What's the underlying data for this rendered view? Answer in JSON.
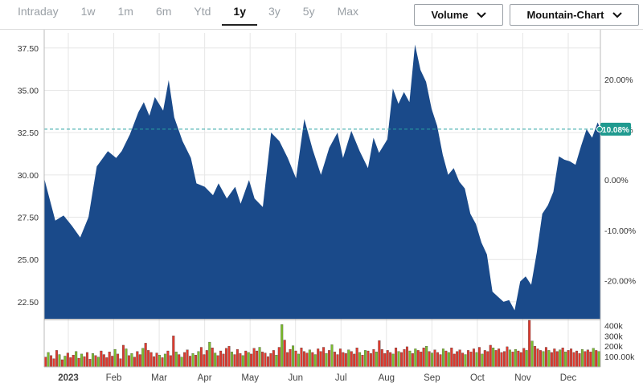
{
  "toolbar": {
    "tabs": [
      {
        "label": "Intraday",
        "active": false
      },
      {
        "label": "1w",
        "active": false
      },
      {
        "label": "1m",
        "active": false
      },
      {
        "label": "6m",
        "active": false
      },
      {
        "label": "Ytd",
        "active": false
      },
      {
        "label": "1y",
        "active": true
      },
      {
        "label": "3y",
        "active": false
      },
      {
        "label": "5y",
        "active": false
      },
      {
        "label": "Max",
        "active": false
      }
    ],
    "volume_dropdown": "Volume",
    "chart_type_dropdown": "Mountain-Chart"
  },
  "chart_data": {
    "type": "area",
    "price_axis": {
      "ticks": [
        "22.50",
        "25.00",
        "27.50",
        "30.00",
        "32.50",
        "35.00",
        "37.50"
      ],
      "ylim": [
        21.5,
        38.2
      ]
    },
    "percent_axis": {
      "ticks": [
        "-20.00%",
        "-10.00%",
        "0.00%",
        "10.00%",
        "20.00%"
      ],
      "base_price": 29.7
    },
    "current_change_label": "10.08%",
    "reference_price": 32.7,
    "x_labels": [
      "2023",
      "Feb",
      "Mar",
      "Apr",
      "May",
      "Jun",
      "Jul",
      "Aug",
      "Sep",
      "Oct",
      "Nov",
      "Dec"
    ],
    "series": [
      {
        "type": "area",
        "color": "#1a4a8a",
        "values": [
          [
            0,
            29.8
          ],
          [
            4,
            27.3
          ],
          [
            7,
            27.6
          ],
          [
            10,
            27.0
          ],
          [
            13,
            26.3
          ],
          [
            16,
            27.5
          ],
          [
            19,
            30.5
          ],
          [
            23,
            31.4
          ],
          [
            26,
            31.0
          ],
          [
            28,
            31.4
          ],
          [
            31,
            32.4
          ],
          [
            34,
            33.7
          ],
          [
            36,
            34.3
          ],
          [
            38,
            33.5
          ],
          [
            40,
            34.6
          ],
          [
            43,
            33.8
          ],
          [
            45,
            35.6
          ],
          [
            47,
            33.4
          ],
          [
            50,
            32.0
          ],
          [
            53,
            31.0
          ],
          [
            55,
            29.5
          ],
          [
            58,
            29.3
          ],
          [
            61,
            28.8
          ],
          [
            63,
            29.5
          ],
          [
            66,
            28.6
          ],
          [
            69,
            29.3
          ],
          [
            71,
            28.3
          ],
          [
            74,
            29.7
          ],
          [
            76,
            28.6
          ],
          [
            79,
            28.1
          ],
          [
            82,
            32.5
          ],
          [
            85,
            32.0
          ],
          [
            88,
            31.0
          ],
          [
            91,
            29.8
          ],
          [
            94,
            33.3
          ],
          [
            97,
            31.5
          ],
          [
            100,
            30.0
          ],
          [
            103,
            31.6
          ],
          [
            106,
            32.5
          ],
          [
            108,
            31.0
          ],
          [
            111,
            32.6
          ],
          [
            114,
            31.4
          ],
          [
            117,
            30.4
          ],
          [
            119,
            32.2
          ],
          [
            121,
            31.3
          ],
          [
            124,
            32.1
          ],
          [
            126,
            35.1
          ],
          [
            128,
            34.2
          ],
          [
            130,
            34.9
          ],
          [
            132,
            34.3
          ],
          [
            134,
            37.7
          ],
          [
            136,
            36.2
          ],
          [
            138,
            35.5
          ],
          [
            140,
            33.9
          ],
          [
            142,
            32.9
          ],
          [
            144,
            31.2
          ],
          [
            146,
            30.0
          ],
          [
            148,
            30.4
          ],
          [
            150,
            29.6
          ],
          [
            152,
            29.2
          ],
          [
            154,
            27.7
          ],
          [
            156,
            27.1
          ],
          [
            158,
            26.0
          ],
          [
            160,
            25.3
          ],
          [
            162,
            23.1
          ],
          [
            164,
            22.8
          ],
          [
            166,
            22.5
          ],
          [
            168,
            22.6
          ],
          [
            170,
            22.0
          ],
          [
            172,
            23.7
          ],
          [
            174,
            24.0
          ],
          [
            176,
            23.5
          ],
          [
            178,
            25.4
          ],
          [
            180,
            27.7
          ],
          [
            182,
            28.2
          ],
          [
            184,
            29.0
          ],
          [
            186,
            31.1
          ],
          [
            188,
            30.9
          ],
          [
            190,
            30.8
          ],
          [
            192,
            30.6
          ],
          [
            194,
            31.7
          ],
          [
            196,
            32.7
          ],
          [
            198,
            32.2
          ],
          [
            200,
            33.1
          ],
          [
            201,
            32.7
          ]
        ]
      }
    ],
    "volume": [
      95,
      140,
      110,
      80,
      160,
      120,
      70,
      105,
      135,
      90,
      115,
      150,
      85,
      125,
      100,
      140,
      75,
      130,
      110,
      95,
      155,
      120,
      90,
      145,
      105,
      170,
      125,
      80,
      210,
      175,
      110,
      130,
      95,
      150,
      120,
      180,
      230,
      160,
      140,
      100,
      135,
      115,
      90,
      125,
      155,
      110,
      300,
      145,
      120,
      95,
      140,
      165,
      105,
      130,
      115,
      150,
      190,
      120,
      160,
      240,
      185,
      135,
      110,
      155,
      125,
      180,
      200,
      145,
      120,
      170,
      130,
      110,
      155,
      140,
      125,
      180,
      155,
      190,
      145,
      135,
      100,
      130,
      160,
      115,
      190,
      410,
      260,
      140,
      170,
      205,
      155,
      125,
      185,
      150,
      135,
      165,
      140,
      120,
      175,
      150,
      190,
      130,
      160,
      215,
      145,
      120,
      175,
      140,
      130,
      165,
      150,
      125,
      185,
      140,
      115,
      160,
      155,
      130,
      170,
      145,
      255,
      170,
      130,
      160,
      140,
      125,
      185,
      150,
      140,
      170,
      195,
      155,
      130,
      175,
      160,
      145,
      185,
      200,
      150,
      135,
      165,
      140,
      120,
      175,
      155,
      140,
      185,
      125,
      150,
      165,
      135,
      120,
      160,
      145,
      175,
      140,
      190,
      125,
      160,
      150,
      210,
      185,
      160,
      175,
      140,
      150,
      195,
      165,
      145,
      170,
      155,
      140,
      180,
      160,
      450,
      250,
      200,
      175,
      160,
      150,
      190,
      160,
      140,
      175,
      150,
      165,
      185,
      145,
      160,
      175,
      140,
      155,
      130,
      170,
      150,
      165,
      145,
      180,
      160,
      150
    ],
    "volume_ticks": [
      "400k",
      "300k",
      "200k",
      "100.00k"
    ]
  }
}
